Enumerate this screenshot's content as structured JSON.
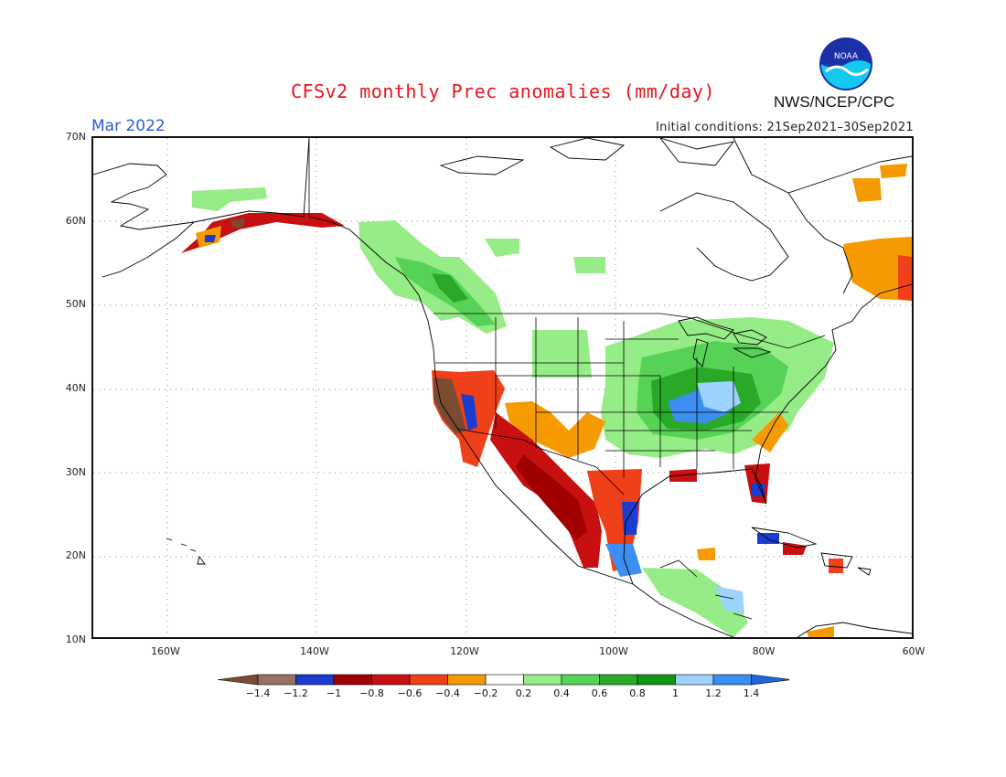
{
  "title": "CFSv2 monthly Prec anomalies (mm/day)",
  "month": "Mar 2022",
  "initial_conditions": "Initial conditions: 21Sep2021–30Sep2021",
  "agency": "NWS/NCEP/CPC",
  "logo_text": "NOAA",
  "lat_labels": [
    "70N",
    "60N",
    "50N",
    "40N",
    "30N",
    "20N",
    "10N"
  ],
  "lon_labels": [
    "160W",
    "140W",
    "120W",
    "100W",
    "80W",
    "60W"
  ],
  "colorbar": {
    "labels": [
      "−1.4",
      "−1.2",
      "−1",
      "−0.8",
      "−0.6",
      "−0.4",
      "−0.2",
      "0.2",
      "0.4",
      "0.6",
      "0.8",
      "1",
      "1.2",
      "1.4"
    ],
    "colors": [
      "#7b4a32",
      "#9b7060",
      "#1a3ccf",
      "#a00000",
      "#c81010",
      "#f0401a",
      "#f59a00",
      "#ffffff",
      "#96ec86",
      "#56d256",
      "#28aa28",
      "#139613",
      "#9ed2ff",
      "#3c8ef0",
      "#2266dd"
    ]
  },
  "map_colors": {
    "green_light": "#96ec86",
    "green_mid": "#56d256",
    "green_dark": "#1ea21e",
    "blue_light": "#9ed2ff",
    "blue_mid": "#3c8ef0",
    "blue_dark": "#1a3ccf",
    "orange": "#f59a00",
    "red_orange": "#f0401a",
    "red": "#c81010",
    "dark_red": "#a00000",
    "brown": "#7b4a32",
    "brown_light": "#9b7060"
  }
}
